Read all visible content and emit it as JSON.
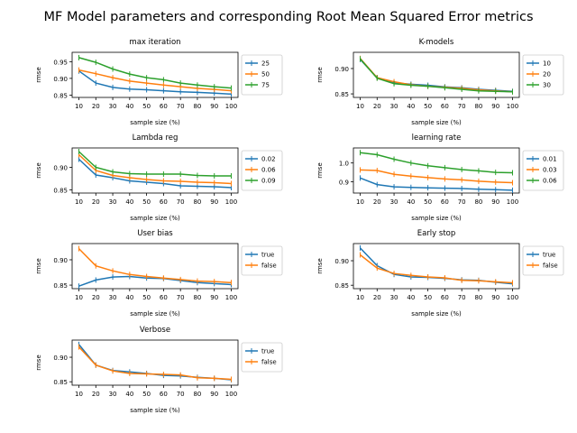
{
  "suptitle": "MF Model parameters and corresponding Root Mean Squared Error metrics",
  "colors": {
    "c0": "#1f77b4",
    "c1": "#ff7f0e",
    "c2": "#2ca02c",
    "axis": "#000000",
    "legend_border": "#cccccc"
  },
  "chart_data": [
    {
      "id": "max-iteration",
      "type": "line",
      "title": "max iteration",
      "xlabel": "sample size (%)",
      "ylabel": "rmse",
      "x": [
        10,
        20,
        30,
        40,
        50,
        60,
        70,
        80,
        90,
        100
      ],
      "xlim": [
        6,
        104
      ],
      "ylim": [
        0.843,
        0.978
      ],
      "yticks": [
        0.85,
        0.9,
        0.95
      ],
      "ytick_labels": [
        "0.85",
        "0.90",
        "0.95"
      ],
      "legend": "right-outside",
      "grid": false,
      "series": [
        {
          "name": "25",
          "color": "#1f77b4",
          "values": [
            0.922,
            0.886,
            0.873,
            0.868,
            0.866,
            0.863,
            0.86,
            0.858,
            0.856,
            0.853
          ]
        },
        {
          "name": "50",
          "color": "#ff7f0e",
          "values": [
            0.925,
            0.914,
            0.902,
            0.892,
            0.886,
            0.88,
            0.875,
            0.87,
            0.867,
            0.863
          ]
        },
        {
          "name": "75",
          "color": "#2ca02c",
          "values": [
            0.962,
            0.948,
            0.928,
            0.913,
            0.902,
            0.896,
            0.886,
            0.88,
            0.875,
            0.871
          ]
        }
      ]
    },
    {
      "id": "k-models",
      "type": "line",
      "title": "K-models",
      "xlabel": "sample size (%)",
      "ylabel": "rmse",
      "x": [
        10,
        20,
        30,
        40,
        50,
        60,
        70,
        80,
        90,
        100
      ],
      "xlim": [
        6,
        104
      ],
      "ylim": [
        0.843,
        0.932
      ],
      "yticks": [
        0.85,
        0.9
      ],
      "ytick_labels": [
        "0.85",
        "0.90"
      ],
      "legend": "right-outside",
      "grid": false,
      "series": [
        {
          "name": "10",
          "color": "#1f77b4",
          "values": [
            0.918,
            0.882,
            0.872,
            0.869,
            0.867,
            0.864,
            0.862,
            0.859,
            0.857,
            0.855
          ]
        },
        {
          "name": "20",
          "color": "#ff7f0e",
          "values": [
            0.92,
            0.882,
            0.874,
            0.868,
            0.865,
            0.863,
            0.861,
            0.858,
            0.856,
            0.854
          ]
        },
        {
          "name": "30",
          "color": "#2ca02c",
          "values": [
            0.919,
            0.881,
            0.87,
            0.867,
            0.865,
            0.862,
            0.859,
            0.856,
            0.855,
            0.854
          ]
        }
      ]
    },
    {
      "id": "lambda-reg",
      "type": "line",
      "title": "Lambda reg",
      "xlabel": "sample size (%)",
      "ylabel": "rmse",
      "x": [
        10,
        20,
        30,
        40,
        50,
        60,
        70,
        80,
        90,
        100
      ],
      "xlim": [
        6,
        104
      ],
      "ylim": [
        0.843,
        0.943
      ],
      "yticks": [
        0.85,
        0.9
      ],
      "ytick_labels": [
        "0.85",
        "0.90"
      ],
      "legend": "right-outside",
      "grid": false,
      "series": [
        {
          "name": "0.02",
          "color": "#1f77b4",
          "values": [
            0.918,
            0.883,
            0.877,
            0.87,
            0.867,
            0.864,
            0.859,
            0.858,
            0.857,
            0.855
          ]
        },
        {
          "name": "0.06",
          "color": "#ff7f0e",
          "values": [
            0.928,
            0.893,
            0.882,
            0.877,
            0.873,
            0.87,
            0.869,
            0.867,
            0.866,
            0.864
          ]
        },
        {
          "name": "0.09",
          "color": "#2ca02c",
          "values": [
            0.935,
            0.9,
            0.89,
            0.886,
            0.885,
            0.885,
            0.885,
            0.882,
            0.881,
            0.881
          ]
        }
      ]
    },
    {
      "id": "learning-rate",
      "type": "line",
      "title": "learning rate",
      "xlabel": "sample size (%)",
      "ylabel": "rmse",
      "x": [
        10,
        20,
        30,
        40,
        50,
        60,
        70,
        80,
        90,
        100
      ],
      "xlim": [
        6,
        104
      ],
      "ylim": [
        0.84,
        1.08
      ],
      "yticks": [
        0.9,
        1.0
      ],
      "ytick_labels": [
        "0.9",
        "1.0"
      ],
      "legend": "right-outside",
      "grid": false,
      "series": [
        {
          "name": "0.01",
          "color": "#1f77b4",
          "values": [
            0.92,
            0.885,
            0.873,
            0.87,
            0.868,
            0.866,
            0.864,
            0.86,
            0.858,
            0.855
          ]
        },
        {
          "name": "0.03",
          "color": "#ff7f0e",
          "values": [
            0.963,
            0.96,
            0.94,
            0.93,
            0.922,
            0.915,
            0.91,
            0.903,
            0.898,
            0.895
          ]
        },
        {
          "name": "0.06",
          "color": "#2ca02c",
          "values": [
            1.055,
            1.044,
            1.02,
            1.0,
            0.985,
            0.975,
            0.965,
            0.958,
            0.95,
            0.948
          ]
        }
      ]
    },
    {
      "id": "user-bias",
      "type": "line",
      "title": "User bias",
      "xlabel": "sample size (%)",
      "ylabel": "rmse",
      "x": [
        10,
        20,
        30,
        40,
        50,
        60,
        70,
        80,
        90,
        100
      ],
      "xlim": [
        6,
        104
      ],
      "ylim": [
        0.843,
        0.932
      ],
      "yticks": [
        0.85,
        0.9
      ],
      "ytick_labels": [
        "0.85",
        "0.90"
      ],
      "legend": "right-outside",
      "grid": false,
      "series": [
        {
          "name": "true",
          "color": "#1f77b4",
          "values": [
            0.848,
            0.86,
            0.866,
            0.867,
            0.864,
            0.863,
            0.859,
            0.855,
            0.853,
            0.851
          ]
        },
        {
          "name": "false",
          "color": "#ff7f0e",
          "values": [
            0.922,
            0.888,
            0.878,
            0.871,
            0.867,
            0.864,
            0.861,
            0.858,
            0.857,
            0.855
          ]
        }
      ]
    },
    {
      "id": "early-stop",
      "type": "line",
      "title": "Early stop",
      "xlabel": "sample size (%)",
      "ylabel": "rmse",
      "x": [
        10,
        20,
        30,
        40,
        50,
        60,
        70,
        80,
        90,
        100
      ],
      "xlim": [
        6,
        104
      ],
      "ylim": [
        0.843,
        0.935
      ],
      "yticks": [
        0.85,
        0.9
      ],
      "ytick_labels": [
        "0.85",
        "0.90"
      ],
      "legend": "right-outside",
      "grid": false,
      "series": [
        {
          "name": "true",
          "color": "#1f77b4",
          "values": [
            0.926,
            0.89,
            0.872,
            0.867,
            0.866,
            0.864,
            0.861,
            0.86,
            0.856,
            0.853
          ]
        },
        {
          "name": "false",
          "color": "#ff7f0e",
          "values": [
            0.912,
            0.885,
            0.874,
            0.87,
            0.867,
            0.865,
            0.86,
            0.859,
            0.857,
            0.855
          ]
        }
      ]
    },
    {
      "id": "verbose",
      "type": "line",
      "title": "Verbose",
      "xlabel": "sample size (%)",
      "ylabel": "rmse",
      "x": [
        10,
        20,
        30,
        40,
        50,
        60,
        70,
        80,
        90,
        100
      ],
      "xlim": [
        6,
        104
      ],
      "ylim": [
        0.843,
        0.935
      ],
      "yticks": [
        0.85,
        0.9
      ],
      "ytick_labels": [
        "0.85",
        "0.90"
      ],
      "legend": "right-outside",
      "grid": false,
      "series": [
        {
          "name": "true",
          "color": "#1f77b4",
          "values": [
            0.926,
            0.884,
            0.873,
            0.87,
            0.867,
            0.863,
            0.862,
            0.859,
            0.857,
            0.854
          ]
        },
        {
          "name": "false",
          "color": "#ff7f0e",
          "values": [
            0.921,
            0.884,
            0.872,
            0.867,
            0.866,
            0.865,
            0.864,
            0.858,
            0.857,
            0.855
          ]
        }
      ]
    }
  ]
}
